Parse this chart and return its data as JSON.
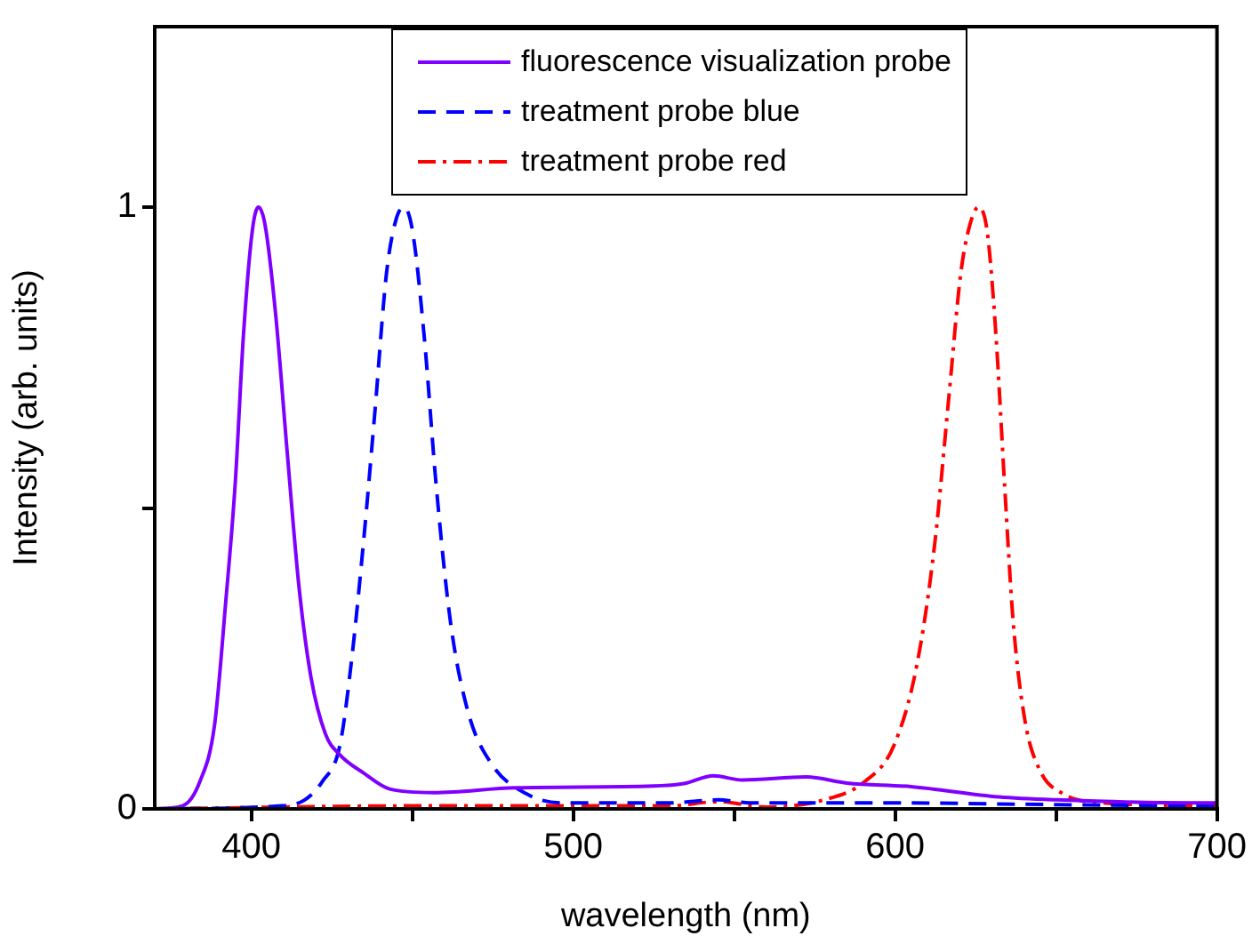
{
  "chart_data": {
    "type": "line",
    "xlabel": "wavelength (nm)",
    "ylabel": "Intensity (arb. units)",
    "xlim": [
      370,
      700
    ],
    "xticks": [
      400,
      {
        "value": 450,
        "label": null
      },
      500,
      {
        "value": 550,
        "label": null
      },
      600,
      {
        "value": 650,
        "label": null
      },
      700
    ],
    "ylim": [
      0,
      1.3
    ],
    "yticks": [
      0,
      {
        "value": 0.5,
        "label": null
      },
      1
    ],
    "grid": false,
    "legend": "top right",
    "marker": "none",
    "series": [
      {
        "name": "fluorescence visualization probe",
        "color": "#7f00ff",
        "line_style": "solid",
        "x": [
          370,
          378.6,
          384,
          388.6,
          392,
          395,
          397.6,
          400.3,
          402.2,
          404.3,
          407.6,
          411.2,
          414.8,
          418.5,
          423,
          427.5,
          434.8,
          443,
          456.5,
          482,
          525,
          534.4,
          543.5,
          552.5,
          572.4,
          585.1,
          605,
          632.2,
          650.3,
          692,
          700
        ],
        "values": [
          0,
          0.005,
          0.045,
          0.14,
          0.34,
          0.54,
          0.79,
          0.96,
          1,
          0.97,
          0.82,
          0.59,
          0.37,
          0.22,
          0.125,
          0.09,
          0.06,
          0.033,
          0.027,
          0.035,
          0.038,
          0.042,
          0.055,
          0.048,
          0.053,
          0.043,
          0.037,
          0.02,
          0.015,
          0.01,
          0.01
        ]
      },
      {
        "name": "treatment probe blue",
        "color": "#0000ff",
        "line_style": "dashed",
        "x": [
          370,
          409.4,
          416.6,
          422,
          427.5,
          431,
          434.8,
          438.4,
          442,
          445,
          447.4,
          450.1,
          453.8,
          457.4,
          461.9,
          467.4,
          474.6,
          485.5,
          496.4,
          530,
          545,
          555,
          600,
          650,
          700
        ],
        "values": [
          0,
          0.005,
          0.015,
          0.045,
          0.105,
          0.24,
          0.44,
          0.66,
          0.89,
          0.98,
          1,
          0.96,
          0.78,
          0.54,
          0.31,
          0.16,
          0.075,
          0.025,
          0.01,
          0.01,
          0.015,
          0.01,
          0.01,
          0.007,
          0.005
        ]
      },
      {
        "name": "treatment probe red",
        "color": "#ff0000",
        "line_style": "dashdot",
        "x": [
          370,
          450,
          530,
          545,
          560,
          577.9,
          590.5,
          599.6,
          606.8,
          612.3,
          616.8,
          620.4,
          623.2,
          625.9,
          628.6,
          631.3,
          634,
          636.7,
          640.4,
          644.9,
          652.2,
          664.8,
          700
        ],
        "values": [
          0,
          0.005,
          0.005,
          0.012,
          0.003,
          0.015,
          0.045,
          0.105,
          0.24,
          0.44,
          0.69,
          0.89,
          0.97,
          1,
          0.96,
          0.79,
          0.54,
          0.31,
          0.145,
          0.065,
          0.025,
          0.01,
          0.005
        ]
      }
    ]
  }
}
